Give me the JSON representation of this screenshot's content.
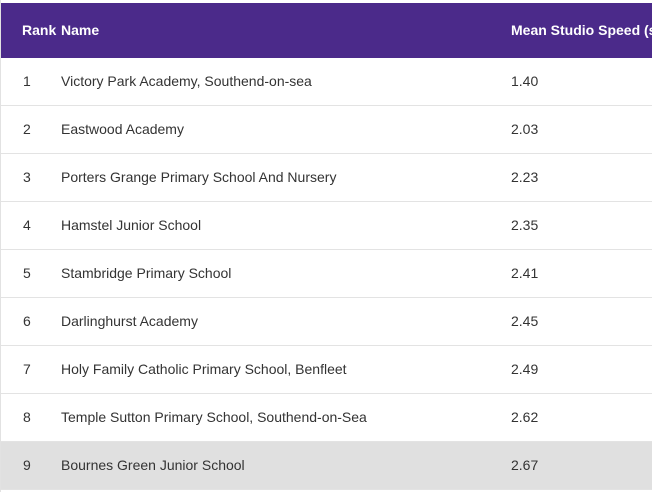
{
  "table": {
    "headers": {
      "rank": "Rank",
      "name": "Name",
      "speed": "Mean Studio Speed (se"
    },
    "rows": [
      {
        "rank": "1",
        "name": "Victory Park Academy, Southend-on-sea",
        "speed": "1.40"
      },
      {
        "rank": "2",
        "name": "Eastwood Academy",
        "speed": "2.03"
      },
      {
        "rank": "3",
        "name": "Porters Grange Primary School And Nursery",
        "speed": "2.23"
      },
      {
        "rank": "4",
        "name": "Hamstel Junior School",
        "speed": "2.35"
      },
      {
        "rank": "5",
        "name": "Stambridge Primary School",
        "speed": "2.41"
      },
      {
        "rank": "6",
        "name": "Darlinghurst Academy",
        "speed": "2.45"
      },
      {
        "rank": "7",
        "name": "Holy Family Catholic Primary School, Benfleet",
        "speed": "2.49"
      },
      {
        "rank": "8",
        "name": "Temple Sutton Primary School, Southend-on-Sea",
        "speed": "2.62"
      },
      {
        "rank": "9",
        "name": "Bournes Green Junior School",
        "speed": "2.67"
      }
    ],
    "highlighted_row_index": 8,
    "colors": {
      "header_bg": "#4b2a8a",
      "highlight_bg": "#e0e0e0"
    }
  }
}
